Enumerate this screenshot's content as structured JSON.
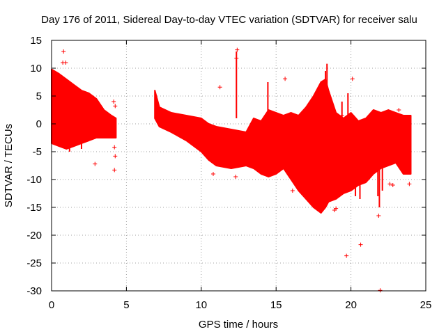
{
  "chart_data": {
    "type": "scatter",
    "title": "Day 176 of 2011, Sidereal Day-to-day VTEC variation (SDTVAR) for receiver salu",
    "xlabel": "GPS time / hours",
    "ylabel": "SDTVAR / TECUs",
    "xlim": [
      0,
      25
    ],
    "ylim": [
      -30,
      15
    ],
    "xticks": [
      0,
      5,
      10,
      15,
      20,
      25
    ],
    "yticks": [
      -30,
      -25,
      -20,
      -15,
      -10,
      -5,
      0,
      5,
      10,
      15
    ],
    "grid": true,
    "marker": "+",
    "series_color": "#ff0000",
    "band_segments": [
      [
        [
          0.0,
          9.8,
          -3.5
        ],
        [
          0.5,
          9.0,
          -4.0
        ],
        [
          1.0,
          8.0,
          -4.5
        ],
        [
          1.5,
          7.0,
          -4.0
        ],
        [
          2.0,
          6.0,
          -3.5
        ],
        [
          2.5,
          5.5,
          -3.0
        ],
        [
          3.0,
          4.5,
          -2.5
        ],
        [
          3.5,
          2.5,
          -2.5
        ],
        [
          4.0,
          1.5,
          -2.5
        ],
        [
          4.3,
          1.0,
          -2.5
        ]
      ],
      [
        [
          6.9,
          6.0,
          1.0
        ],
        [
          7.2,
          3.0,
          -0.5
        ],
        [
          8.0,
          2.0,
          -1.5
        ],
        [
          9.0,
          1.5,
          -3.0
        ],
        [
          10.0,
          1.0,
          -5.0
        ],
        [
          10.5,
          0.0,
          -6.5
        ],
        [
          11.0,
          -0.5,
          -7.5
        ],
        [
          12.0,
          -1.0,
          -8.0
        ],
        [
          13.0,
          -1.5,
          -7.5
        ],
        [
          13.5,
          1.0,
          -8.0
        ],
        [
          14.0,
          0.5,
          -9.0
        ],
        [
          14.5,
          2.5,
          -9.5
        ],
        [
          15.0,
          2.0,
          -9.0
        ],
        [
          15.5,
          1.5,
          -8.0
        ],
        [
          16.0,
          2.0,
          -10.0
        ],
        [
          16.5,
          1.5,
          -12.0
        ],
        [
          17.0,
          3.0,
          -13.5
        ],
        [
          17.5,
          5.0,
          -15.0
        ],
        [
          18.0,
          7.5,
          -16.0
        ],
        [
          18.3,
          8.0,
          -15.0
        ],
        [
          18.5,
          6.0,
          -14.0
        ],
        [
          19.0,
          2.0,
          -13.5
        ],
        [
          19.5,
          1.0,
          -12.5
        ],
        [
          20.0,
          2.0,
          -12.0
        ],
        [
          20.5,
          0.5,
          -11.0
        ],
        [
          21.0,
          1.0,
          -10.5
        ],
        [
          21.5,
          2.5,
          -9.0
        ],
        [
          22.0,
          2.0,
          -8.0
        ],
        [
          22.5,
          2.5,
          -7.5
        ],
        [
          23.0,
          2.0,
          -7.0
        ],
        [
          23.5,
          1.5,
          -9.0
        ],
        [
          24.0,
          1.5,
          -9.0
        ]
      ]
    ],
    "spikes": [
      [
        12.35,
        1.0,
        13.0
      ],
      [
        14.45,
        -3.0,
        7.5
      ],
      [
        18.4,
        0.0,
        10.8
      ],
      [
        18.3,
        -5.0,
        9.5
      ],
      [
        19.8,
        -10.0,
        5.5
      ],
      [
        21.8,
        -13.0,
        2.0
      ],
      [
        21.9,
        -15.0,
        2.0
      ],
      [
        22.1,
        -12.0,
        -3.0
      ],
      [
        20.6,
        -13.5,
        -8.0
      ],
      [
        20.3,
        -13.0,
        -10.0
      ],
      [
        19.4,
        -11.0,
        4.0
      ],
      [
        2.0,
        -4.5,
        -1.0
      ],
      [
        1.2,
        -5.0,
        6.0
      ]
    ],
    "outliers": [
      [
        0.8,
        13.0
      ],
      [
        0.75,
        11.0
      ],
      [
        0.95,
        11.0
      ],
      [
        4.15,
        4.0
      ],
      [
        4.25,
        3.2
      ],
      [
        4.2,
        -4.2
      ],
      [
        4.25,
        -5.8
      ],
      [
        4.2,
        -8.3
      ],
      [
        2.9,
        -7.2
      ],
      [
        12.4,
        13.3
      ],
      [
        12.35,
        11.8
      ],
      [
        11.25,
        6.6
      ],
      [
        15.6,
        8.1
      ],
      [
        20.1,
        8.1
      ],
      [
        19.7,
        -23.7
      ],
      [
        20.65,
        -21.7
      ],
      [
        21.85,
        -16.5
      ],
      [
        21.95,
        -29.9
      ],
      [
        22.6,
        -10.8
      ],
      [
        22.8,
        -11.0
      ],
      [
        23.9,
        -10.8
      ],
      [
        23.2,
        2.5
      ],
      [
        19.4,
        1.5
      ],
      [
        12.3,
        -9.5
      ],
      [
        10.8,
        -9.0
      ],
      [
        19.0,
        -15.2
      ],
      [
        18.9,
        -15.5
      ],
      [
        16.1,
        -12.0
      ]
    ]
  }
}
